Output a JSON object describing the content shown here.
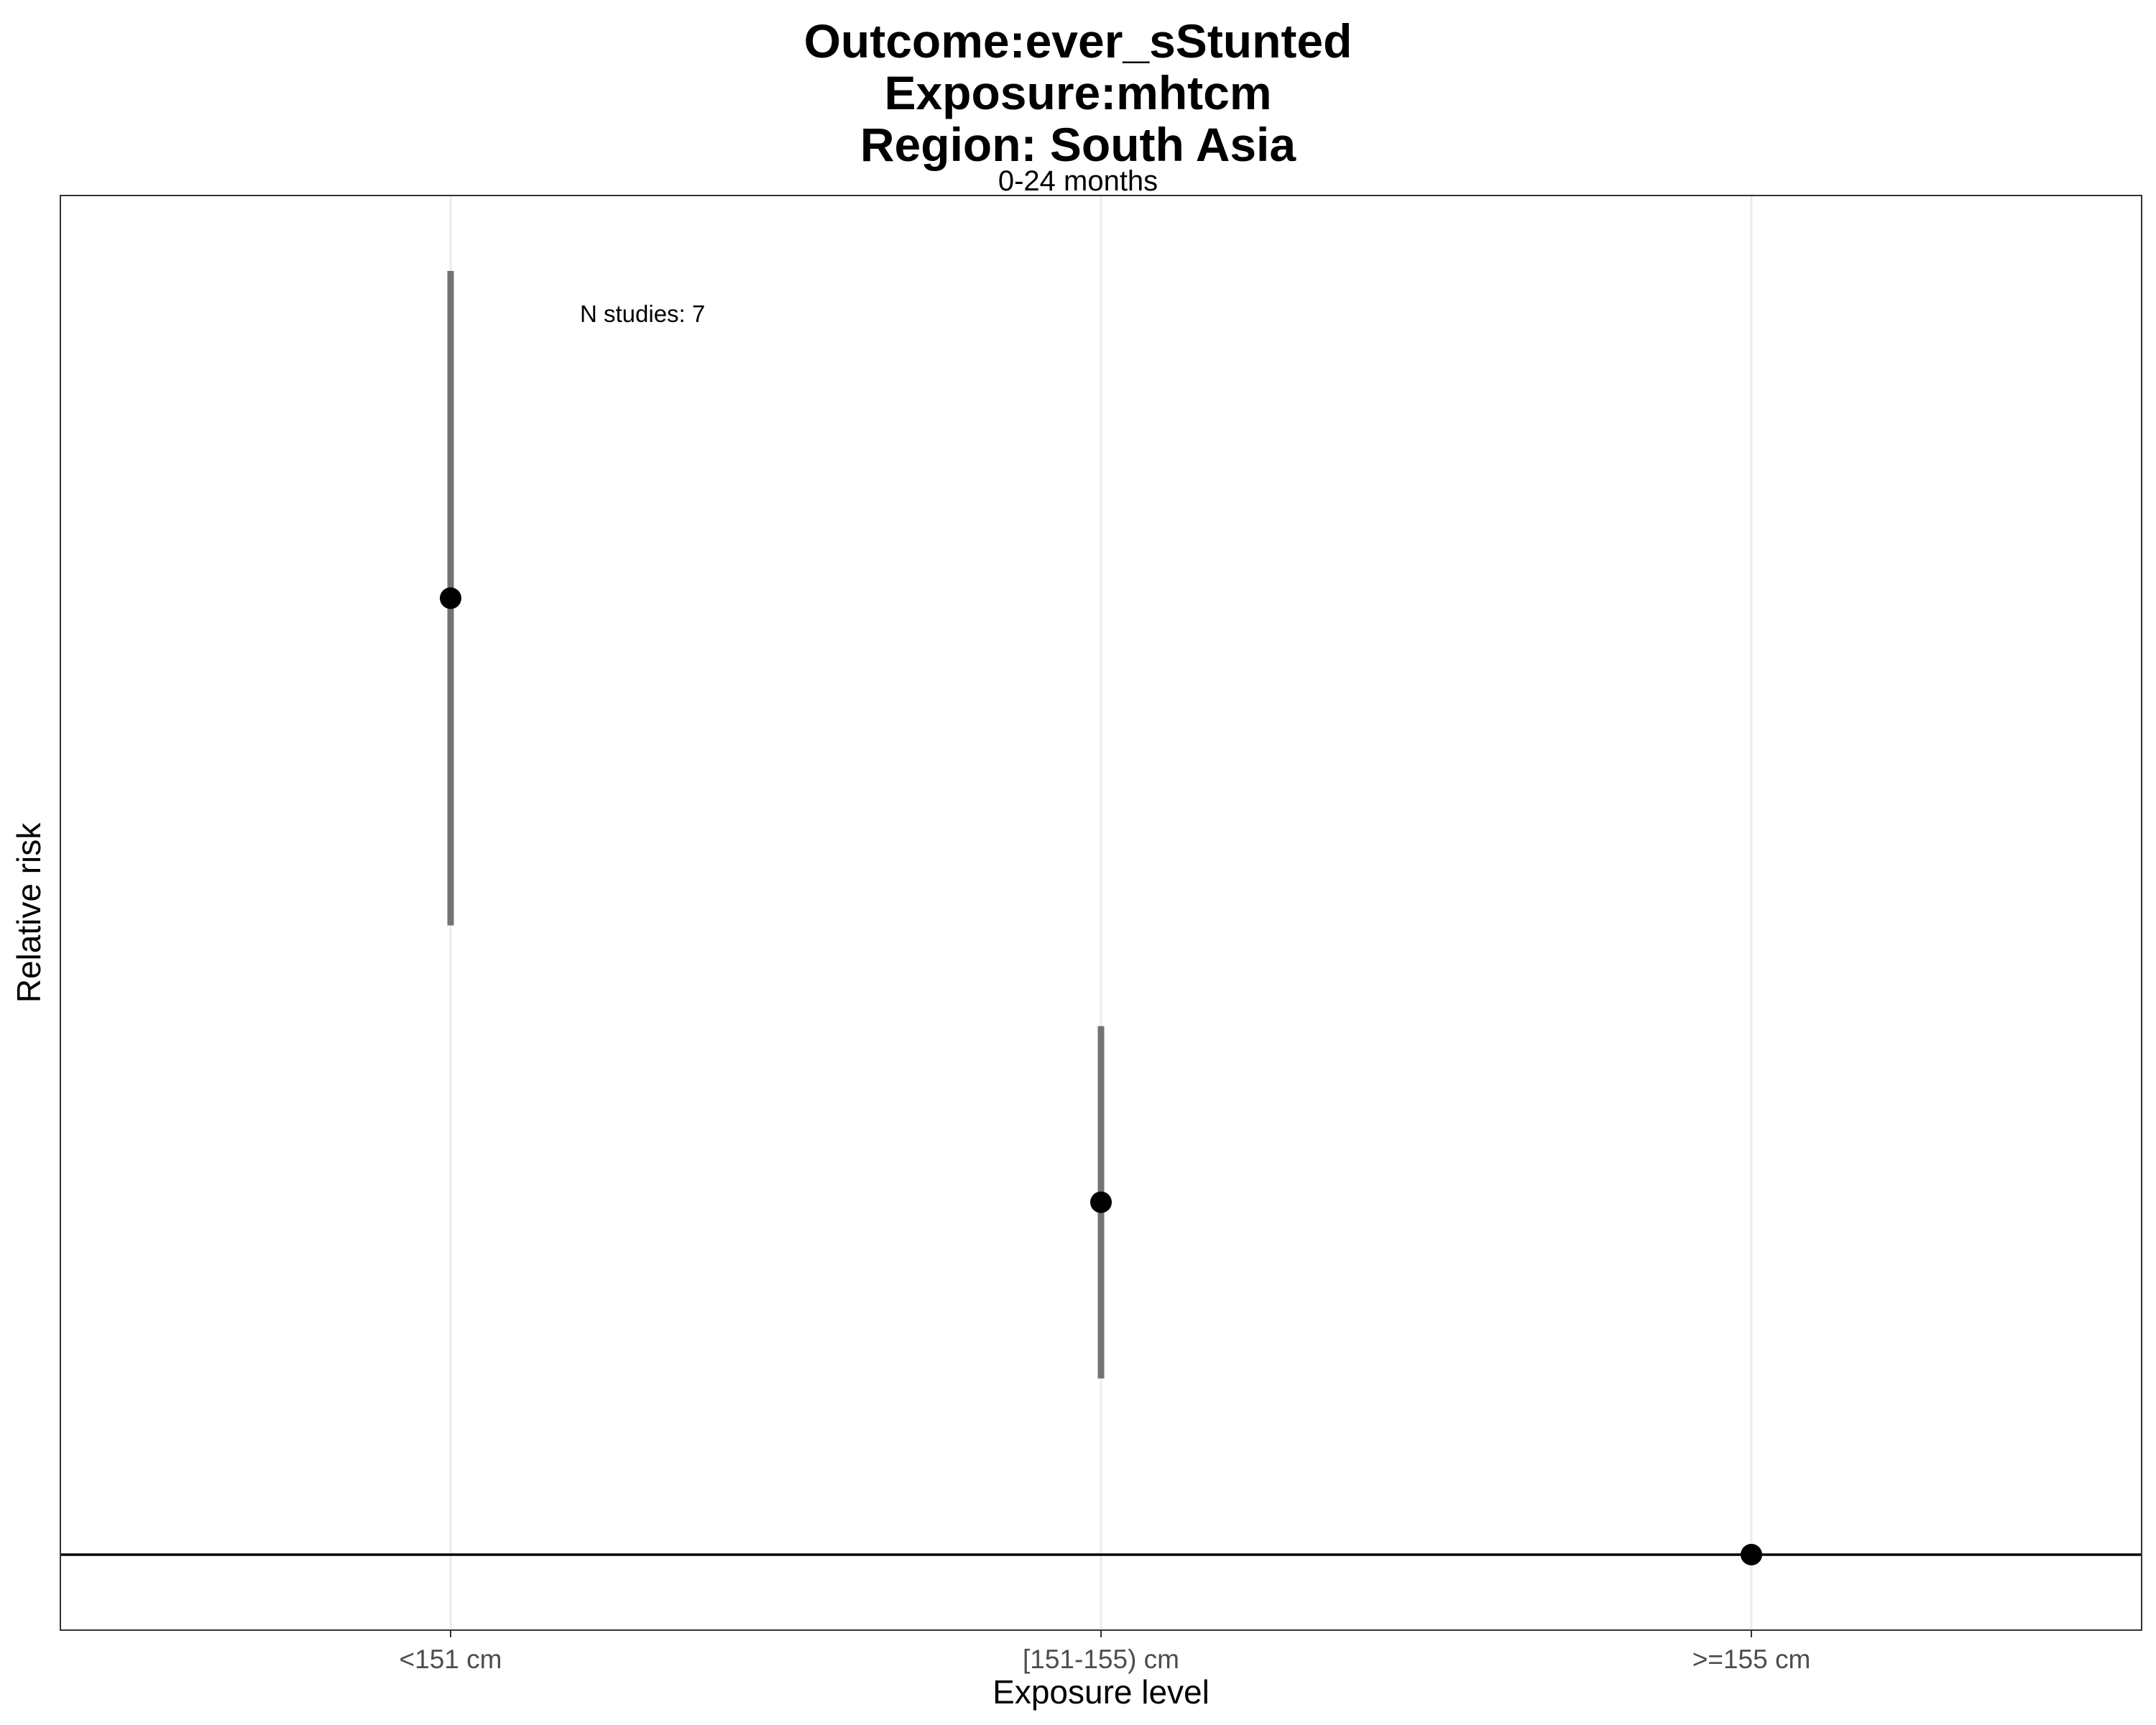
{
  "chart_data": {
    "type": "scatter",
    "title": [
      "Outcome:ever_sStunted",
      "Exposure:mhtcm",
      "Region: South Asia"
    ],
    "subtitle": "0-24 months",
    "xlabel": "Exposure level",
    "ylabel": "Relative risk",
    "categories": [
      "<151 cm",
      "[151-155) cm",
      ">=155 cm"
    ],
    "points": [
      {
        "category": "<151 cm",
        "estimate": 1.38,
        "ci_lower": 1.25,
        "ci_upper": 1.51
      },
      {
        "category": "[151-155) cm",
        "estimate": 1.14,
        "ci_lower": 1.07,
        "ci_upper": 1.21
      },
      {
        "category": ">=155 cm",
        "estimate": 1.0,
        "ci_lower": null,
        "ci_upper": null
      }
    ],
    "ylim": [
      0.97,
      1.54
    ],
    "reference_line": 1.0,
    "y_tick_labels_shown": false,
    "annotation": "N studies: 7",
    "grid": "vertical-major",
    "colors": {
      "point": "#000000",
      "errorbar": "#737373",
      "reference": "#000000",
      "grid": "#ebebeb",
      "panel_border": "#333333"
    }
  }
}
